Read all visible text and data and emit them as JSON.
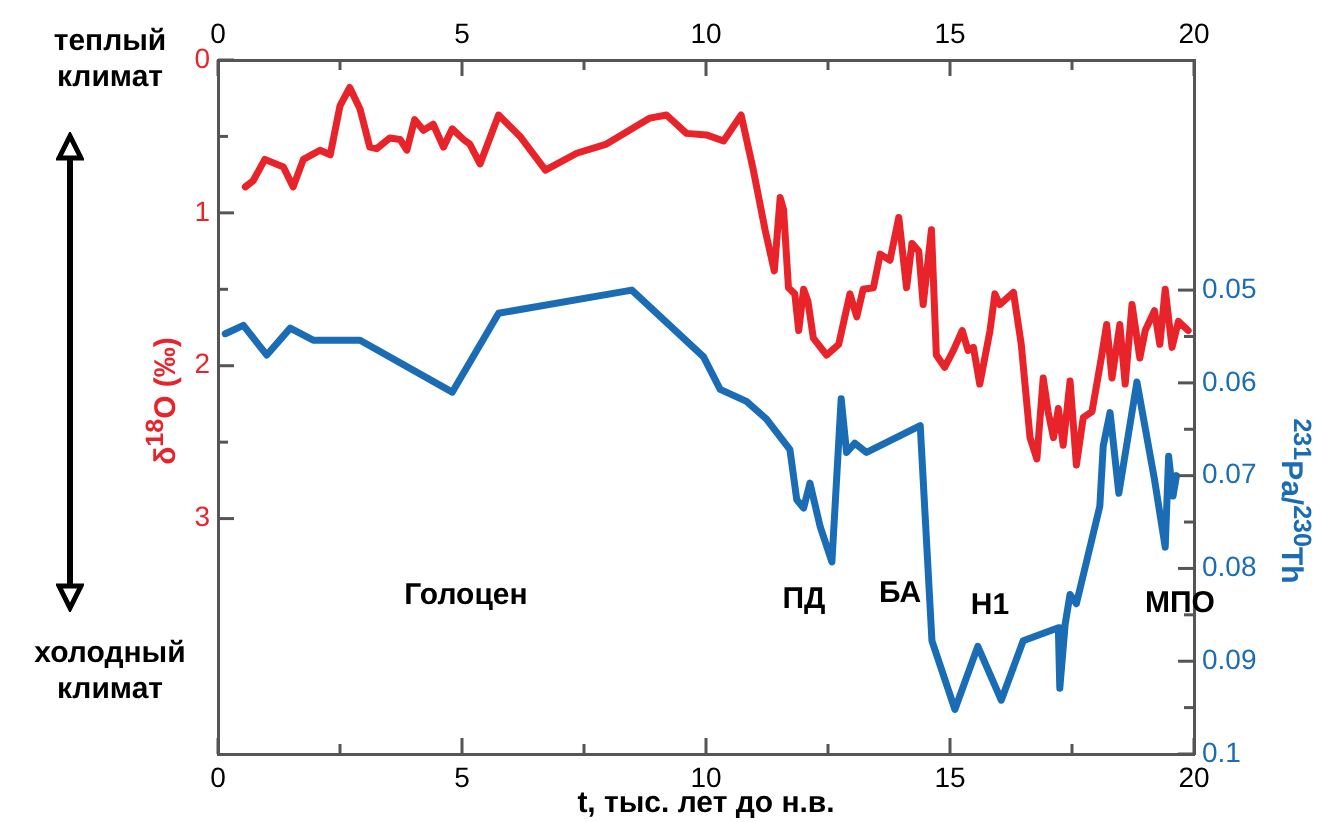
{
  "chart_data": {
    "type": "line",
    "xlabel": "t, тыс. лет до н.в.",
    "ylabel": "δ$^{18}$O (‰)",
    "y2label": "$^{231}$Pa/$^{230}$Th",
    "xlim": [
      0,
      20
    ],
    "xticks": [
      0,
      {
        "value": 2.5,
        "label": null
      },
      5,
      {
        "value": 7.5,
        "label": null
      },
      10,
      {
        "value": 12.5,
        "label": null
      },
      15,
      {
        "value": 17.5,
        "label": null
      },
      20
    ],
    "x2lim": [
      0,
      20
    ],
    "x2ticks": [
      0,
      {
        "value": 2.5,
        "label": null
      },
      5,
      {
        "value": 7.5,
        "label": null
      },
      10,
      {
        "value": 12.5,
        "label": null
      },
      15,
      {
        "value": 17.5,
        "label": null
      },
      20
    ],
    "ylim": [
      4.54,
      0
    ],
    "yticks": [
      0,
      {
        "value": 0.5,
        "label": null
      },
      1,
      {
        "value": 1.5,
        "label": null
      },
      2,
      {
        "value": 2.5,
        "label": null
      },
      3
    ],
    "y2lim": [
      0.1,
      0.0252
    ],
    "y2ticks": [
      0.05,
      {
        "value": 0.055,
        "label": null
      },
      0.06,
      {
        "value": 0.065,
        "label": null
      },
      0.07,
      {
        "value": 0.075,
        "label": null
      },
      0.08,
      {
        "value": 0.085,
        "label": null
      },
      0.09,
      {
        "value": 0.095,
        "label": null
      },
      0.1
    ],
    "grid": false,
    "legend": false,
    "marker": "none",
    "line_style": "solid",
    "series": [
      {
        "color": "#e8242a",
        "x": [
          0.56,
          0.72,
          0.96,
          1.34,
          1.54,
          1.75,
          2.09,
          2.3,
          2.5,
          2.7,
          2.91,
          3.11,
          3.25,
          3.52,
          3.73,
          3.87,
          4.03,
          4.21,
          4.41,
          4.62,
          4.8,
          5.03,
          5.16,
          5.37,
          5.75,
          6.19,
          6.71,
          7.35,
          7.96,
          8.85,
          9.19,
          9.6,
          10.01,
          10.36,
          10.72,
          10.97,
          11.21,
          11.4,
          11.52,
          11.59,
          11.69,
          11.82,
          11.9,
          12.0,
          12.09,
          12.2,
          12.47,
          12.72,
          12.95,
          13.09,
          13.22,
          13.43,
          13.57,
          13.77,
          13.95,
          14.11,
          14.22,
          14.36,
          14.45,
          14.62,
          14.72,
          14.89,
          15.07,
          15.25,
          15.37,
          15.48,
          15.61,
          15.82,
          15.92,
          16.02,
          16.3,
          16.46,
          16.64,
          16.78,
          16.91,
          17.01,
          17.12,
          17.22,
          17.32,
          17.46,
          17.59,
          17.73,
          17.91,
          18.1,
          18.21,
          18.32,
          18.48,
          18.59,
          18.73,
          18.89,
          19.0,
          19.19,
          19.3,
          19.41,
          19.55,
          19.68,
          19.88
        ],
        "values": [
          0.83,
          0.79,
          0.65,
          0.7,
          0.83,
          0.65,
          0.59,
          0.62,
          0.3,
          0.18,
          0.32,
          0.57,
          0.58,
          0.51,
          0.52,
          0.59,
          0.39,
          0.46,
          0.42,
          0.57,
          0.45,
          0.52,
          0.55,
          0.68,
          0.36,
          0.5,
          0.72,
          0.61,
          0.55,
          0.38,
          0.36,
          0.48,
          0.49,
          0.53,
          0.36,
          0.72,
          1.11,
          1.38,
          0.9,
          0.98,
          1.49,
          1.53,
          1.77,
          1.5,
          1.58,
          1.82,
          1.93,
          1.86,
          1.53,
          1.68,
          1.5,
          1.49,
          1.27,
          1.31,
          1.03,
          1.49,
          1.2,
          1.25,
          1.6,
          1.11,
          1.93,
          2.01,
          1.9,
          1.77,
          1.9,
          1.88,
          2.12,
          1.77,
          1.53,
          1.6,
          1.52,
          1.86,
          2.47,
          2.61,
          2.08,
          2.3,
          2.47,
          2.28,
          2.52,
          2.1,
          2.65,
          2.34,
          2.3,
          1.95,
          1.73,
          2.08,
          1.73,
          2.12,
          1.6,
          1.95,
          1.77,
          1.64,
          1.86,
          1.5,
          1.88,
          1.71,
          1.77
        ]
      },
      {
        "color": "#1a6db5",
        "axis": "y2",
        "x": [
          0.15,
          0.52,
          1.0,
          1.48,
          1.95,
          2.91,
          4.8,
          5.75,
          8.48,
          9.95,
          10.29,
          10.83,
          11.24,
          11.72,
          11.86,
          12.0,
          12.13,
          12.34,
          12.58,
          12.77,
          12.88,
          13.05,
          13.29,
          14.39,
          14.63,
          15.1,
          15.57,
          16.05,
          16.5,
          17.22,
          17.25,
          17.36,
          17.46,
          17.59,
          18.07,
          18.14,
          18.28,
          18.46,
          18.83,
          19.19,
          19.41,
          19.48,
          19.57,
          19.64
        ],
        "values": [
          0.0547,
          0.0538,
          0.057,
          0.0541,
          0.0554,
          0.0554,
          0.061,
          0.0525,
          0.05,
          0.0572,
          0.0607,
          0.062,
          0.0639,
          0.0672,
          0.0726,
          0.0735,
          0.0708,
          0.0755,
          0.0793,
          0.0617,
          0.0675,
          0.0665,
          0.0675,
          0.0646,
          0.0878,
          0.0952,
          0.0884,
          0.0942,
          0.0878,
          0.0864,
          0.0929,
          0.086,
          0.0828,
          0.0838,
          0.0733,
          0.0668,
          0.0632,
          0.0719,
          0.0599,
          0.0704,
          0.0777,
          0.0679,
          0.0722,
          0.07
        ]
      }
    ],
    "annotations": [
      "теплый климат",
      "холодный климат",
      "Голоцен",
      "ПД",
      "БА",
      "Н1",
      "МПО"
    ]
  }
}
